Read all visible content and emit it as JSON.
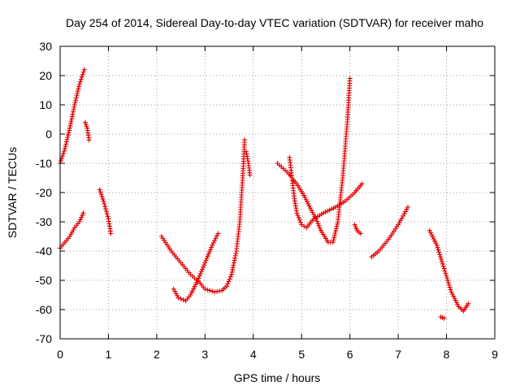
{
  "chart_data": {
    "type": "scatter",
    "title": "Day 254 of 2014, Sidereal Day-to-day VTEC variation (SDTVAR) for receiver maho",
    "xlabel": "GPS time / hours",
    "ylabel": "SDTVAR / TECUs",
    "xlim": [
      0,
      9
    ],
    "ylim": [
      -70,
      30
    ],
    "xticks": [
      "0",
      "1",
      "2",
      "3",
      "4",
      "5",
      "6",
      "7",
      "8",
      "9"
    ],
    "yticks": [
      "30",
      "20",
      "10",
      "0",
      "-10",
      "-20",
      "-30",
      "-40",
      "-50",
      "-60",
      "-70"
    ],
    "grid": true,
    "marker": "+",
    "color": "#e00000",
    "series": [
      {
        "name": "arc1",
        "points": [
          [
            0.0,
            -10
          ],
          [
            0.1,
            -5
          ],
          [
            0.2,
            2
          ],
          [
            0.3,
            10
          ],
          [
            0.4,
            17
          ],
          [
            0.5,
            22
          ]
        ]
      },
      {
        "name": "arc2",
        "points": [
          [
            0.52,
            4
          ],
          [
            0.56,
            2
          ],
          [
            0.6,
            -2
          ]
        ]
      },
      {
        "name": "arc3",
        "points": [
          [
            0.0,
            -39
          ],
          [
            0.1,
            -37
          ],
          [
            0.2,
            -35
          ],
          [
            0.3,
            -32
          ],
          [
            0.4,
            -30
          ],
          [
            0.48,
            -27
          ]
        ]
      },
      {
        "name": "arc4",
        "points": [
          [
            0.82,
            -19
          ],
          [
            0.9,
            -23
          ],
          [
            1.0,
            -29
          ],
          [
            1.05,
            -34
          ]
        ]
      },
      {
        "name": "arc5",
        "points": [
          [
            2.1,
            -35
          ],
          [
            2.3,
            -40
          ],
          [
            2.5,
            -44
          ],
          [
            2.7,
            -48
          ],
          [
            2.9,
            -51
          ],
          [
            3.0,
            -53
          ],
          [
            3.2,
            -54
          ],
          [
            3.35,
            -53.5
          ],
          [
            3.45,
            -52
          ],
          [
            3.55,
            -48
          ],
          [
            3.65,
            -40
          ],
          [
            3.72,
            -30
          ],
          [
            3.78,
            -15
          ],
          [
            3.82,
            -2
          ]
        ]
      },
      {
        "name": "arc6",
        "points": [
          [
            3.85,
            -6
          ],
          [
            3.9,
            -10
          ],
          [
            3.93,
            -14
          ]
        ]
      },
      {
        "name": "arc7",
        "points": [
          [
            2.35,
            -53
          ],
          [
            2.45,
            -56
          ],
          [
            2.6,
            -57
          ],
          [
            2.7,
            -55
          ],
          [
            2.85,
            -50
          ],
          [
            3.0,
            -44
          ],
          [
            3.15,
            -38
          ],
          [
            3.27,
            -34
          ]
        ]
      },
      {
        "name": "arc8",
        "points": [
          [
            4.5,
            -10
          ],
          [
            4.7,
            -13
          ],
          [
            4.9,
            -17
          ],
          [
            5.05,
            -21
          ],
          [
            5.2,
            -26
          ],
          [
            5.3,
            -29
          ],
          [
            5.4,
            -33
          ],
          [
            5.55,
            -37
          ],
          [
            5.65,
            -37
          ],
          [
            5.75,
            -30
          ],
          [
            5.85,
            -15
          ],
          [
            5.95,
            5
          ],
          [
            6.0,
            19
          ]
        ]
      },
      {
        "name": "arc9",
        "points": [
          [
            4.75,
            -8
          ],
          [
            4.8,
            -15
          ],
          [
            4.85,
            -22
          ],
          [
            4.9,
            -27
          ],
          [
            5.0,
            -31
          ],
          [
            5.1,
            -32
          ],
          [
            5.25,
            -29
          ],
          [
            5.45,
            -27
          ],
          [
            5.7,
            -25
          ],
          [
            5.9,
            -23
          ],
          [
            6.1,
            -20
          ],
          [
            6.25,
            -17
          ]
        ]
      },
      {
        "name": "arc10",
        "points": [
          [
            6.1,
            -31
          ],
          [
            6.15,
            -33
          ],
          [
            6.22,
            -34
          ]
        ]
      },
      {
        "name": "arc11",
        "points": [
          [
            6.45,
            -42
          ],
          [
            6.6,
            -40
          ],
          [
            6.8,
            -36
          ],
          [
            7.0,
            -31
          ],
          [
            7.2,
            -25
          ]
        ]
      },
      {
        "name": "arc12",
        "points": [
          [
            7.65,
            -33
          ],
          [
            7.8,
            -38
          ],
          [
            7.95,
            -46
          ],
          [
            8.1,
            -54
          ],
          [
            8.25,
            -59
          ],
          [
            8.35,
            -60.5
          ],
          [
            8.45,
            -58
          ]
        ]
      },
      {
        "name": "arc13",
        "points": [
          [
            7.88,
            -62.5
          ],
          [
            7.95,
            -63
          ]
        ]
      }
    ]
  }
}
